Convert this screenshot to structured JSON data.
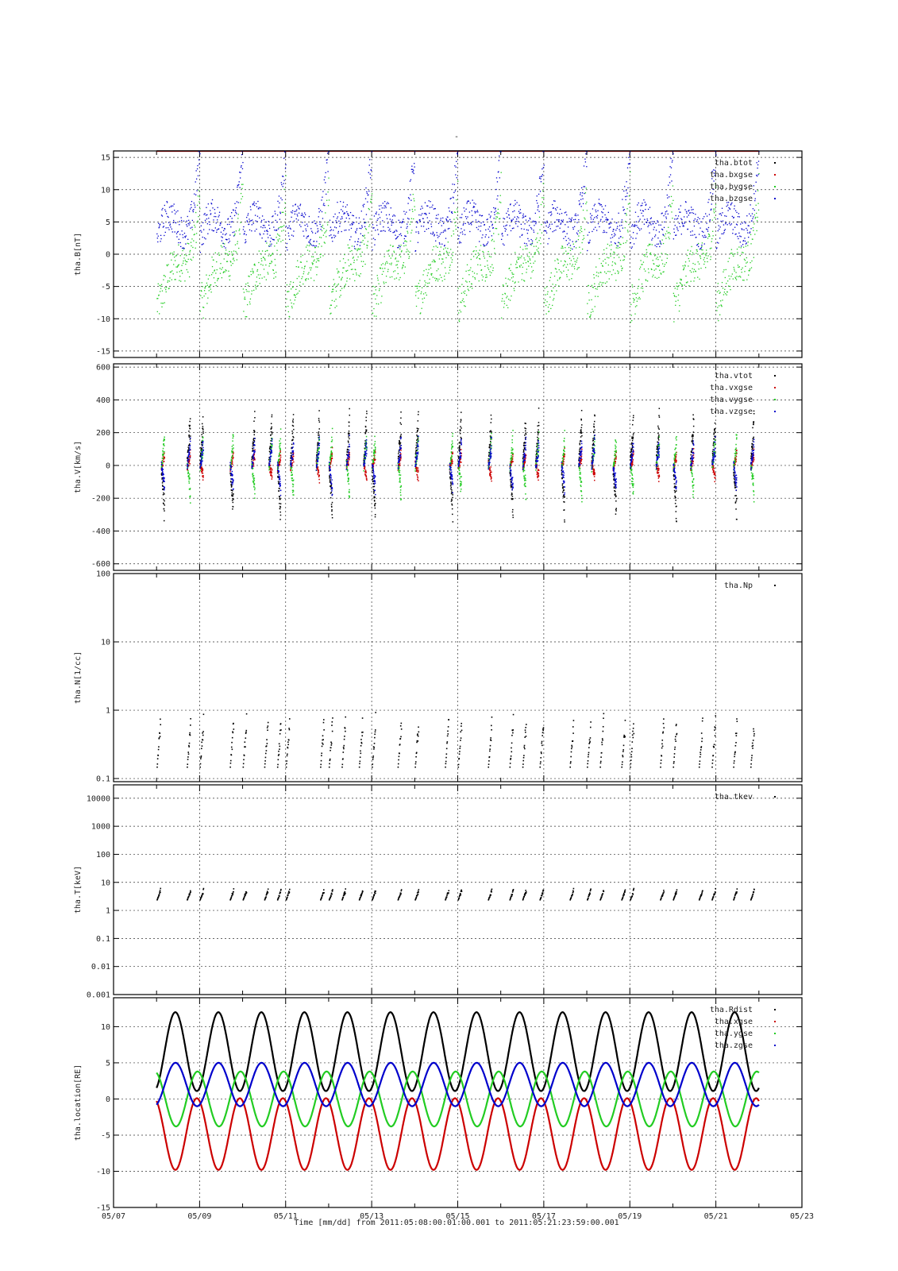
{
  "figure": {
    "title": "-",
    "x_axis": {
      "label": "Time [mm/dd]  from 2011:05:08:00:01:00.001  to  2011:05:21:23:59:00.001",
      "range_days": [
        7,
        23
      ],
      "ticks": [
        {
          "day": 7,
          "label": "05/07"
        },
        {
          "day": 9,
          "label": "05/09"
        },
        {
          "day": 11,
          "label": "05/11"
        },
        {
          "day": 13,
          "label": "05/13"
        },
        {
          "day": 15,
          "label": "05/15"
        },
        {
          "day": 17,
          "label": "05/17"
        },
        {
          "day": 19,
          "label": "05/19"
        },
        {
          "day": 21,
          "label": "05/21"
        },
        {
          "day": 23,
          "label": "05/23"
        }
      ],
      "grid_days": [
        9,
        11,
        13,
        15,
        17,
        19,
        21
      ]
    }
  },
  "chart_data": [
    {
      "type": "scatter",
      "ylabel": "tha.B[nT]",
      "scale": "linear",
      "ylim": [
        -16,
        16
      ],
      "yticks": [
        {
          "v": -15,
          "label": "-15"
        },
        {
          "v": -10,
          "label": "-10"
        },
        {
          "v": -5,
          "label": "-5"
        },
        {
          "v": 0,
          "label": "0"
        },
        {
          "v": 5,
          "label": "5"
        },
        {
          "v": 10,
          "label": "10"
        },
        {
          "v": 15,
          "label": "15"
        }
      ],
      "grid": true,
      "legend_position": "top-right",
      "series": [
        {
          "name": "tha.btot",
          "color": "#000000",
          "model": "flat",
          "base": 16
        },
        {
          "name": "tha.bxgse",
          "color": "#cc0000",
          "model": "flat",
          "base": 16
        },
        {
          "name": "tha.bygse",
          "color": "#22cc22",
          "model": "hook",
          "base": -5,
          "amp": 18,
          "spread": 3
        },
        {
          "name": "tha.bzgse",
          "color": "#0000cc",
          "model": "hook",
          "base": 3,
          "amp": 14,
          "spread": 2.5
        }
      ]
    },
    {
      "type": "scatter",
      "ylabel": "tha.V[km/s]",
      "scale": "linear",
      "ylim": [
        -640,
        620
      ],
      "yticks": [
        {
          "v": -600,
          "label": "-600"
        },
        {
          "v": -400,
          "label": "-400"
        },
        {
          "v": -200,
          "label": "-200"
        },
        {
          "v": 0,
          "label": "0"
        },
        {
          "v": 200,
          "label": "200"
        },
        {
          "v": 400,
          "label": "400"
        },
        {
          "v": 600,
          "label": "600"
        }
      ],
      "grid": true,
      "legend_position": "top-right",
      "series": [
        {
          "name": "tha.vtot",
          "color": "#000000",
          "model": "burst",
          "base": 150,
          "amp": 350
        },
        {
          "name": "tha.vxgse",
          "color": "#cc0000",
          "model": "burst",
          "base": -60,
          "amp": 120
        },
        {
          "name": "tha.vygse",
          "color": "#22cc22",
          "model": "burst",
          "base": -80,
          "amp": 250
        },
        {
          "name": "tha.vzgse",
          "color": "#0000cc",
          "model": "burst",
          "base": -30,
          "amp": 200
        }
      ]
    },
    {
      "type": "scatter",
      "ylabel": "tha.N[1/cc]",
      "scale": "log",
      "ylim": [
        0.09,
        100
      ],
      "yticks": [
        {
          "v": 0.1,
          "label": "0.1"
        },
        {
          "v": 1,
          "label": "1"
        },
        {
          "v": 10,
          "label": "10"
        },
        {
          "v": 100,
          "label": "100"
        }
      ],
      "grid": true,
      "legend_position": "top-right",
      "series": [
        {
          "name": "tha.Np",
          "color": "#000000",
          "model": "logband",
          "low": 0.15,
          "high": 1.1
        }
      ]
    },
    {
      "type": "scatter",
      "ylabel": "tha.T[keV]",
      "scale": "log",
      "ylim": [
        0.001,
        30000
      ],
      "yticks": [
        {
          "v": 0.001,
          "label": "0.001"
        },
        {
          "v": 0.01,
          "label": "0.01"
        },
        {
          "v": 0.1,
          "label": "0.1"
        },
        {
          "v": 1,
          "label": "1"
        },
        {
          "v": 10,
          "label": "10"
        },
        {
          "v": 100,
          "label": "100"
        },
        {
          "v": 1000,
          "label": "1000"
        },
        {
          "v": 10000,
          "label": "10000"
        }
      ],
      "grid": true,
      "legend_position": "top-right",
      "series": [
        {
          "name": "tha.tkev",
          "color": "#000000",
          "model": "logband",
          "low": 2.5,
          "high": 7
        }
      ]
    },
    {
      "type": "line",
      "ylabel": "tha.location[RE]",
      "scale": "linear",
      "ylim": [
        -15,
        14
      ],
      "yticks": [
        {
          "v": -15,
          "label": "-15"
        },
        {
          "v": -10,
          "label": "-10"
        },
        {
          "v": -5,
          "label": "-5"
        },
        {
          "v": 0,
          "label": "0"
        },
        {
          "v": 5,
          "label": "5"
        },
        {
          "v": 10,
          "label": "10"
        }
      ],
      "grid": true,
      "legend_position": "top-right",
      "orbit_period_days": 1.0,
      "series": [
        {
          "name": "tha.Rdist",
          "color": "#000000",
          "model": "orbit_r"
        },
        {
          "name": "tha.xgse",
          "color": "#cc0000",
          "model": "orbit_x"
        },
        {
          "name": "tha.ygse",
          "color": "#22cc22",
          "model": "orbit_y"
        },
        {
          "name": "tha.zgse",
          "color": "#0000cc",
          "model": "orbit_z"
        }
      ]
    }
  ]
}
